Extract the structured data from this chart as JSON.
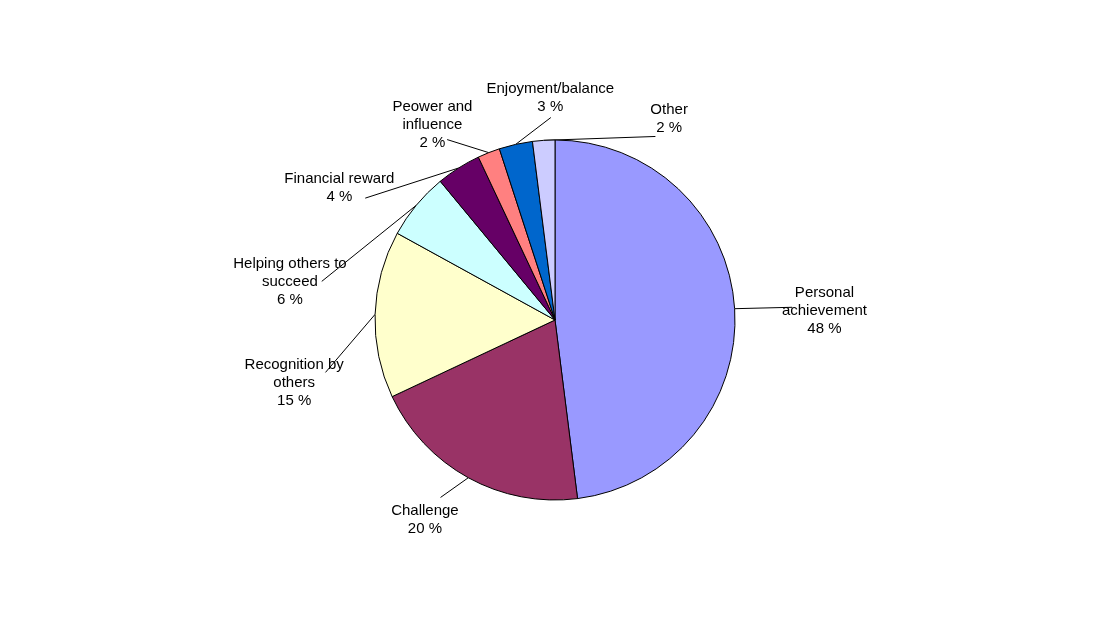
{
  "chart_data": {
    "type": "pie",
    "categories": [
      "Personal achievement",
      "Challenge",
      "Recognition by others",
      "Helping others to succeed",
      "Financial reward",
      "Peower and influence",
      "Enjoyment/balance",
      "Other"
    ],
    "values": [
      48,
      20,
      15,
      6,
      4,
      2,
      3,
      2
    ],
    "value_labels": [
      "48 %",
      "20 %",
      "15 %",
      "6 %",
      "4 %",
      "2 %",
      "3 %",
      "2 %"
    ],
    "colors": [
      "#9999ff",
      "#993366",
      "#ffffcc",
      "#ccffff",
      "#660066",
      "#ff8080",
      "#0066cc",
      "#ccccff"
    ]
  }
}
